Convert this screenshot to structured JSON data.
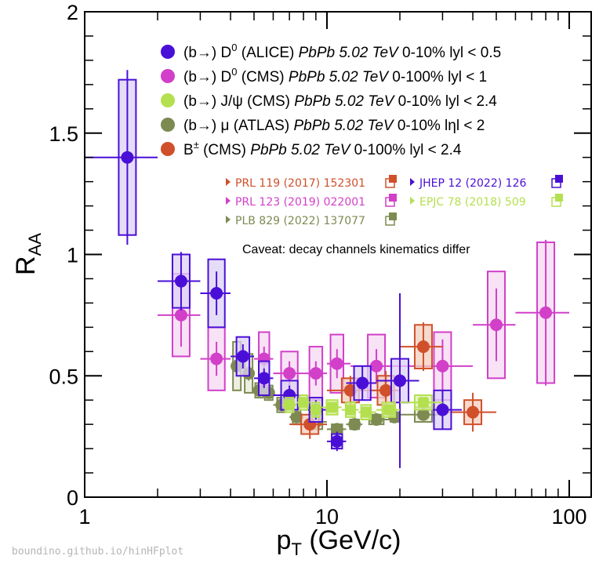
{
  "chart_data": {
    "type": "scatter",
    "xscale": "log",
    "xlim": [
      1,
      100
    ],
    "ylim": [
      0,
      2
    ],
    "xlabel": {
      "main": "p",
      "sub": "T",
      "rest": " (GeV/c)"
    },
    "ylabel": {
      "main": "R",
      "sub": "AA"
    },
    "xticks": [
      {
        "v": 1,
        "label": "1"
      },
      {
        "v": 10,
        "label": "10"
      },
      {
        "v": 100,
        "label": "100"
      }
    ],
    "yticks": [
      {
        "v": 0,
        "label": "0"
      },
      {
        "v": 0.5,
        "label": "0.5"
      },
      {
        "v": 1,
        "label": "1"
      },
      {
        "v": 1.5,
        "label": "1.5"
      },
      {
        "v": 2,
        "label": "2"
      }
    ],
    "series": [
      {
        "id": "alice-d0",
        "name": "(b→) D0 (ALICE) PbPb 5.02 TeV 0-10% |y| < 0.5",
        "legend": {
          "particle": "(b→) D",
          "sup": "0",
          "detector": " (ALICE) ",
          "system": "PbPb 5.02 TeV",
          "cuts": " 0-10% lyl < 0.5"
        },
        "color": "#4a0fd6",
        "fill": "#dcd2f6",
        "points": [
          {
            "x": 1.5,
            "y": 1.4,
            "xlo": 1.0,
            "xhi": 2.0,
            "stat": 0.36,
            "syst": 0.32
          },
          {
            "x": 2.5,
            "y": 0.89,
            "xlo": 2.0,
            "xhi": 3.0,
            "stat": 0.12,
            "syst": 0.11
          },
          {
            "x": 3.5,
            "y": 0.84,
            "xlo": 3.0,
            "xhi": 4.0,
            "stat": 0.09,
            "syst": 0.14
          },
          {
            "x": 4.5,
            "y": 0.58,
            "xlo": 4.0,
            "xhi": 5.0,
            "stat": 0.05,
            "syst": 0.08
          },
          {
            "x": 5.5,
            "y": 0.49,
            "xlo": 5.0,
            "xhi": 6.0,
            "stat": 0.04,
            "syst": 0.07
          },
          {
            "x": 7.0,
            "y": 0.42,
            "xlo": 6.0,
            "xhi": 8.0,
            "stat": 0.04,
            "syst": 0.06
          },
          {
            "x": 9.0,
            "y": 0.36,
            "xlo": 8.0,
            "xhi": 10.0,
            "stat": 0.04,
            "syst": 0.05
          },
          {
            "x": 11.0,
            "y": 0.23,
            "xlo": 10.0,
            "xhi": 12.0,
            "stat": 0.04,
            "syst": 0.03
          },
          {
            "x": 14.0,
            "y": 0.47,
            "xlo": 12.0,
            "xhi": 16.0,
            "stat": 0.07,
            "syst": 0.07
          },
          {
            "x": 20.0,
            "y": 0.48,
            "xlo": 16.0,
            "xhi": 24.0,
            "stat": 0.36,
            "syst": 0.09
          },
          {
            "x": 30.0,
            "y": 0.36,
            "xlo": 24.0,
            "xhi": 36.0,
            "stat": 0.08,
            "syst": 0.08
          }
        ]
      },
      {
        "id": "cms-d0",
        "name": "(b→) D0 (CMS) PbPb 5.02 TeV 0-100% |y| < 1",
        "legend": {
          "particle": "(b→) D",
          "sup": "0",
          "detector": " (CMS) ",
          "system": "PbPb 5.02 TeV",
          "cuts": " 0-100% lyl < 1"
        },
        "color": "#d23fc9",
        "fill": "#f6d8f3",
        "points": [
          {
            "x": 2.5,
            "y": 0.75,
            "xlo": 2.0,
            "xhi": 3.0,
            "stat": 0.13,
            "syst": 0.17
          },
          {
            "x": 3.5,
            "y": 0.57,
            "xlo": 3.0,
            "xhi": 4.0,
            "stat": 0.07,
            "syst": 0.13
          },
          {
            "x": 5.5,
            "y": 0.57,
            "xlo": 5.0,
            "xhi": 6.0,
            "stat": 0.05,
            "syst": 0.11
          },
          {
            "x": 7.0,
            "y": 0.51,
            "xlo": 6.0,
            "xhi": 8.0,
            "stat": 0.05,
            "syst": 0.09
          },
          {
            "x": 9.0,
            "y": 0.51,
            "xlo": 8.0,
            "xhi": 10.0,
            "stat": 0.05,
            "syst": 0.11
          },
          {
            "x": 11.0,
            "y": 0.55,
            "xlo": 10.0,
            "xhi": 12.5,
            "stat": 0.06,
            "syst": 0.12
          },
          {
            "x": 16.0,
            "y": 0.54,
            "xlo": 12.5,
            "xhi": 20.0,
            "stat": 0.07,
            "syst": 0.13
          },
          {
            "x": 30.0,
            "y": 0.54,
            "xlo": 20.0,
            "xhi": 40.0,
            "stat": 0.11,
            "syst": 0.14
          },
          {
            "x": 50.0,
            "y": 0.71,
            "xlo": 40.0,
            "xhi": 60.0,
            "stat": 0.15,
            "syst": 0.22
          },
          {
            "x": 80.0,
            "y": 0.76,
            "xlo": 60.0,
            "xhi": 100.0,
            "stat": 0.3,
            "syst": 0.29
          }
        ]
      },
      {
        "id": "cms-jpsi",
        "name": "(b→) J/ψ (CMS) PbPb 5.02 TeV 0-10% |y| < 2.4",
        "legend": {
          "particle": "(b→) J/ψ",
          "sup": "",
          "detector": " (CMS) ",
          "system": "PbPb 5.02 TeV",
          "cuts": " 0-10% lyl < 2.4"
        },
        "color": "#b4e050",
        "fill": "#dff2b6",
        "marker": "square",
        "points": [
          {
            "x": 7.0,
            "y": 0.38,
            "xlo": 6.5,
            "xhi": 7.5,
            "stat": 0.02,
            "syst": 0.03
          },
          {
            "x": 8.0,
            "y": 0.39,
            "xlo": 7.5,
            "xhi": 8.5,
            "stat": 0.02,
            "syst": 0.03
          },
          {
            "x": 9.0,
            "y": 0.36,
            "xlo": 8.5,
            "xhi": 9.5,
            "stat": 0.02,
            "syst": 0.03
          },
          {
            "x": 10.5,
            "y": 0.37,
            "xlo": 9.5,
            "xhi": 11.5,
            "stat": 0.02,
            "syst": 0.03
          },
          {
            "x": 12.5,
            "y": 0.36,
            "xlo": 11.5,
            "xhi": 13.5,
            "stat": 0.02,
            "syst": 0.03
          },
          {
            "x": 14.5,
            "y": 0.35,
            "xlo": 13.5,
            "xhi": 16.0,
            "stat": 0.02,
            "syst": 0.03
          },
          {
            "x": 18.0,
            "y": 0.36,
            "xlo": 16.0,
            "xhi": 20.0,
            "stat": 0.02,
            "syst": 0.03
          },
          {
            "x": 25.0,
            "y": 0.39,
            "xlo": 20.0,
            "xhi": 30.0,
            "stat": 0.02,
            "syst": 0.03
          }
        ]
      },
      {
        "id": "atlas-mu",
        "name": "(b→) μ (ATLAS) PbPb 5.02 TeV 0-10% |η| < 2",
        "legend": {
          "particle": "(b→) μ",
          "sup": "",
          "detector": " (ATLAS) ",
          "system": "PbPb 5.02 TeV",
          "cuts": " 0-10% lηl < 2"
        },
        "color": "#7d8a52",
        "fill": "#e7ead6",
        "points": [
          {
            "x": 4.25,
            "y": 0.54,
            "xlo": 4.0,
            "xhi": 4.5,
            "stat": 0.03,
            "syst": 0.1
          },
          {
            "x": 4.75,
            "y": 0.51,
            "xlo": 4.5,
            "xhi": 5.0,
            "stat": 0.03,
            "syst": 0.08
          },
          {
            "x": 5.25,
            "y": 0.44,
            "xlo": 5.0,
            "xhi": 5.5,
            "stat": 0.02,
            "syst": 0.03
          },
          {
            "x": 5.75,
            "y": 0.43,
            "xlo": 5.5,
            "xhi": 6.0,
            "stat": 0.02,
            "syst": 0.03
          },
          {
            "x": 6.5,
            "y": 0.38,
            "xlo": 6.0,
            "xhi": 7.0,
            "stat": 0.02,
            "syst": 0.03
          },
          {
            "x": 7.5,
            "y": 0.33,
            "xlo": 7.0,
            "xhi": 8.0,
            "stat": 0.02,
            "syst": 0.03
          },
          {
            "x": 9.0,
            "y": 0.31,
            "xlo": 8.0,
            "xhi": 10.0,
            "stat": 0.02,
            "syst": 0.03
          },
          {
            "x": 11.0,
            "y": 0.28,
            "xlo": 10.0,
            "xhi": 12.0,
            "stat": 0.02,
            "syst": 0.02
          },
          {
            "x": 13.0,
            "y": 0.3,
            "xlo": 12.0,
            "xhi": 14.0,
            "stat": 0.02,
            "syst": 0.02
          },
          {
            "x": 16.0,
            "y": 0.32,
            "xlo": 14.0,
            "xhi": 18.0,
            "stat": 0.02,
            "syst": 0.02
          },
          {
            "x": 19.0,
            "y": 0.33,
            "xlo": 18.0,
            "xhi": 20.0,
            "stat": 0.02,
            "syst": 0.02
          },
          {
            "x": 25.0,
            "y": 0.34,
            "xlo": 20.0,
            "xhi": 30.0,
            "stat": 0.02,
            "syst": 0.03
          }
        ]
      },
      {
        "id": "cms-bplus",
        "name": "B± (CMS) PbPb 5.02 TeV 0-100% |y| < 2.4",
        "legend": {
          "particle": "B",
          "sup": "±",
          "detector": " (CMS) ",
          "system": "PbPb 5.02 TeV",
          "cuts": " 0-100% lyl < 2.4"
        },
        "color": "#d0502a",
        "fill": "#f3cdbd",
        "points": [
          {
            "x": 8.5,
            "y": 0.3,
            "xlo": 7.0,
            "xhi": 10.0,
            "stat": 0.06,
            "syst": 0.04
          },
          {
            "x": 12.5,
            "y": 0.44,
            "xlo": 10.0,
            "xhi": 15.0,
            "stat": 0.06,
            "syst": 0.05
          },
          {
            "x": 17.5,
            "y": 0.44,
            "xlo": 15.0,
            "xhi": 20.0,
            "stat": 0.08,
            "syst": 0.06
          },
          {
            "x": 25.0,
            "y": 0.62,
            "xlo": 20.0,
            "xhi": 30.0,
            "stat": 0.1,
            "syst": 0.09
          },
          {
            "x": 40.0,
            "y": 0.35,
            "xlo": 30.0,
            "xhi": 50.0,
            "stat": 0.08,
            "syst": 0.05
          }
        ]
      }
    ],
    "references": [
      {
        "text": "PRL 119 (2017) 152301",
        "color": "#d0502a"
      },
      {
        "text": "PRL 123 (2019) 022001",
        "color": "#d23fc9"
      },
      {
        "text": "PLB 829 (2022) 137077",
        "color": "#7d8a52"
      },
      {
        "text": "JHEP 12 (2022) 126",
        "color": "#4a0fd6"
      },
      {
        "text": "EPJC 78 (2018) 509",
        "color": "#b4e050"
      }
    ],
    "caveat": "Caveat: decay channels kinematics differ",
    "watermark": "boundino.github.io/hinHFplot"
  }
}
